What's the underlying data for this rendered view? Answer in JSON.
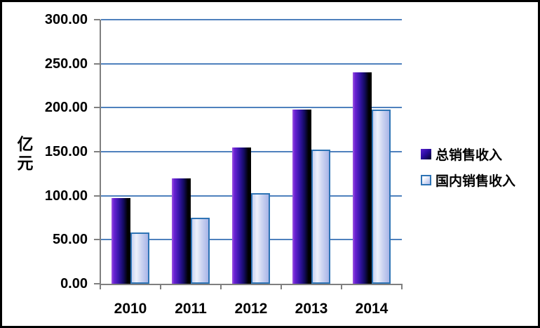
{
  "window": {
    "background": "#ffffff",
    "frame_color": "#000000"
  },
  "chart_data": {
    "type": "bar",
    "title": "",
    "xlabel": "",
    "ylabel": "亿元",
    "categories": [
      "2010",
      "2011",
      "2012",
      "2013",
      "2014"
    ],
    "series": [
      {
        "name": "总销售收入",
        "values": [
          97,
          120,
          155,
          198,
          240
        ]
      },
      {
        "name": "国内销售收入",
        "values": [
          58,
          75,
          103,
          152,
          198
        ]
      }
    ],
    "ylim": [
      0,
      300
    ],
    "ytick_step": 50,
    "ytick_labels": [
      "0.00",
      "50.00",
      "100.00",
      "150.00",
      "200.00",
      "250.00",
      "300.00"
    ],
    "grid": true,
    "legend_position": "right",
    "colors": {
      "gridline": "#4f81bd",
      "axis": "#7f7f7f",
      "text": "#000000",
      "bar_total_gradient": [
        "#a35be0",
        "#3614a8",
        "#000000"
      ],
      "bar_domestic_fill": [
        "#c9d3f1",
        "#edf0fb",
        "#a9b5e7"
      ],
      "bar_domestic_border": "#2e74b5"
    }
  }
}
